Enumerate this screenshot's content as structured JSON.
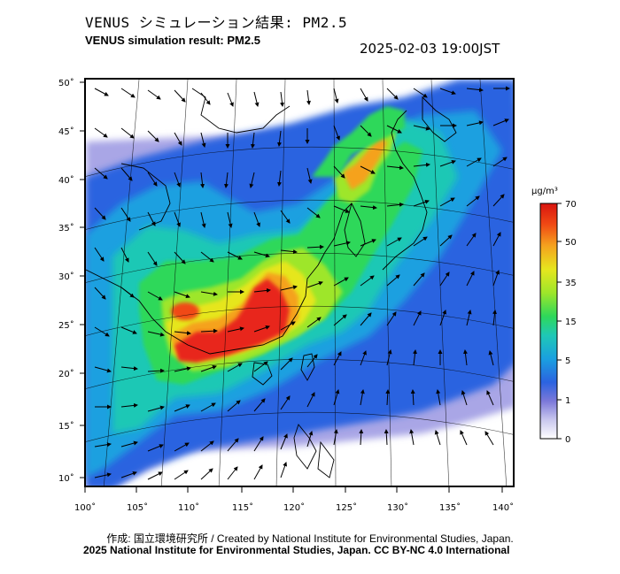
{
  "header": {
    "title_jp": "VENUS シミュレーション結果: PM2.5",
    "title_en": "VENUS simulation result: PM2.5",
    "timestamp": "2025-02-03 19:00JST"
  },
  "map": {
    "lon_labels": [
      "100˚",
      "105˚",
      "110˚",
      "115˚",
      "120˚",
      "125˚",
      "130˚",
      "135˚",
      "140˚"
    ],
    "lat_labels": [
      "50˚",
      "45˚",
      "40˚",
      "35˚",
      "30˚",
      "25˚",
      "20˚",
      "15˚",
      "10˚"
    ]
  },
  "colorbar": {
    "unit": "μg/m³",
    "ticks": [
      "70",
      "50",
      "35",
      "15",
      "5",
      "1",
      "0"
    ],
    "colors": [
      "#ffffff",
      "#7b78d9",
      "#2b63e0",
      "#1aa0e0",
      "#1fc8b5",
      "#2ed85a",
      "#9ee62a",
      "#e6e61e",
      "#f5a21e",
      "#f04a14",
      "#d8140f"
    ]
  },
  "footer": {
    "credit_line1": "作成: 国立環境研究所 / Created by National Institute for Environmental Studies, Japan.",
    "credit_line2": "2025 National Institute for Environmental Studies, Japan. CC BY-NC 4.0 International"
  }
}
